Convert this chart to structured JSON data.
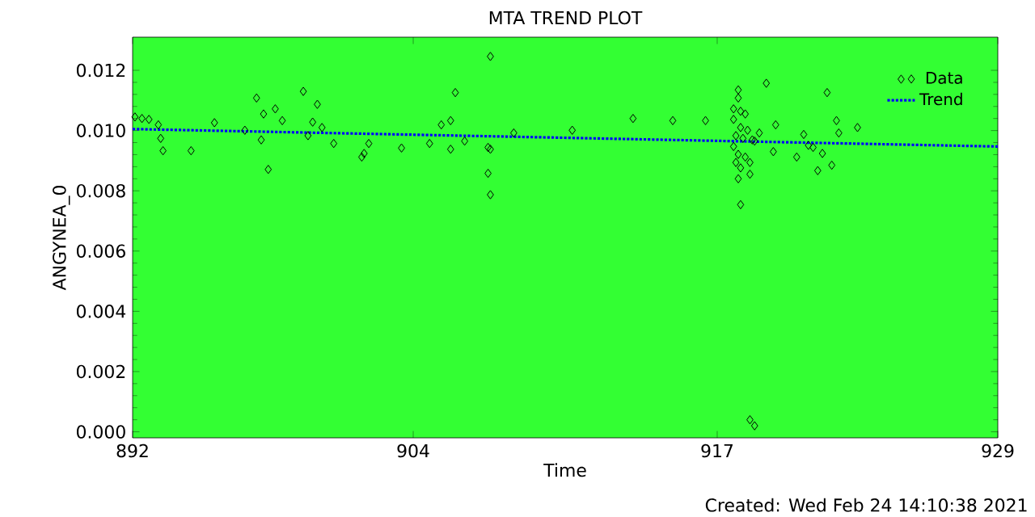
{
  "chart_data": {
    "type": "scatter",
    "title": "MTA TREND PLOT",
    "xlabel": "Time",
    "ylabel": "ANGYNEA_0",
    "annotations": [
      "Created: Wed Feb 24 14:10:38 2021"
    ],
    "xlim": [
      892,
      929
    ],
    "ylim": [
      -0.0002,
      0.0131
    ],
    "xticks": [
      892,
      904,
      917,
      929
    ],
    "yticks": [
      {
        "value": 0,
        "label": "0.000"
      },
      {
        "value": 0.002,
        "label": "0.002"
      },
      {
        "value": 0.004,
        "label": "0.004"
      },
      {
        "value": 0.006,
        "label": "0.006"
      },
      {
        "value": 0.008,
        "label": "0.008"
      },
      {
        "value": 0.01,
        "label": "0.010"
      },
      {
        "value": 0.012,
        "label": "0.012"
      }
    ],
    "grid": false,
    "legend": "top right",
    "series": [
      {
        "name": "Data",
        "color": "#000000",
        "marker": "diamond",
        "x": [
          892.1,
          892.4,
          892.7,
          893.1,
          893.2,
          893.3,
          894.5,
          895.5,
          896.8,
          897.3,
          897.5,
          897.6,
          897.8,
          898.1,
          898.4,
          899.3,
          899.5,
          899.7,
          899.9,
          900.1,
          900.6,
          901.8,
          901.9,
          902.1,
          903.5,
          904.7,
          905.2,
          905.6,
          905.8,
          905.6,
          906.2,
          907.3,
          907.2,
          907.3,
          907.2,
          907.3,
          908.3,
          910.8,
          913.4,
          915.1,
          916.5,
          917.9,
          917.9,
          917.7,
          918.0,
          918.2,
          917.7,
          918.0,
          918.3,
          917.8,
          918.1,
          918.5,
          917.7,
          917.9,
          918.2,
          917.8,
          918.4,
          918.0,
          918.4,
          917.9,
          918.6,
          918.0,
          918.4,
          918.6,
          919.1,
          918.8,
          919.5,
          919.4,
          920.4,
          920.7,
          920.9,
          921.1,
          921.3,
          921.5,
          921.7,
          921.9,
          922.1,
          922.2,
          923.0,
          925.3
        ],
        "values": [
          0.01045,
          0.0104,
          0.01037,
          0.01019,
          0.00974,
          0.00933,
          0.00933,
          0.01026,
          0.01001,
          0.01108,
          0.00969,
          0.01055,
          0.00871,
          0.01072,
          0.01033,
          0.0113,
          0.00983,
          0.01028,
          0.01087,
          0.0101,
          0.00957,
          0.00912,
          0.00924,
          0.00957,
          0.00942,
          0.00957,
          0.01019,
          0.01033,
          0.01126,
          0.00938,
          0.00965,
          0.01246,
          0.00944,
          0.00938,
          0.00858,
          0.00787,
          0.00992,
          0.01001,
          0.0104,
          0.01033,
          0.01033,
          0.01135,
          0.01108,
          0.01072,
          0.01064,
          0.01055,
          0.01037,
          0.0101,
          0.01001,
          0.00983,
          0.00974,
          0.00969,
          0.00947,
          0.00921,
          0.00912,
          0.00894,
          0.00894,
          0.00876,
          0.00855,
          0.0084,
          0.00965,
          0.00754,
          0.0004,
          0.0002,
          0.01157,
          0.00992,
          0.01019,
          0.0093,
          0.00912,
          0.00987,
          0.00951,
          0.00944,
          0.00867,
          0.00924,
          0.01126,
          0.00885,
          0.01033,
          0.00992,
          0.0101,
          0.01171
        ]
      },
      {
        "name": "Trend",
        "type": "line",
        "color": "#0000ff",
        "marker": "none",
        "line_style": "dotted",
        "x": [
          892,
          929
        ],
        "values": [
          0.01005,
          0.00947
        ]
      }
    ]
  }
}
